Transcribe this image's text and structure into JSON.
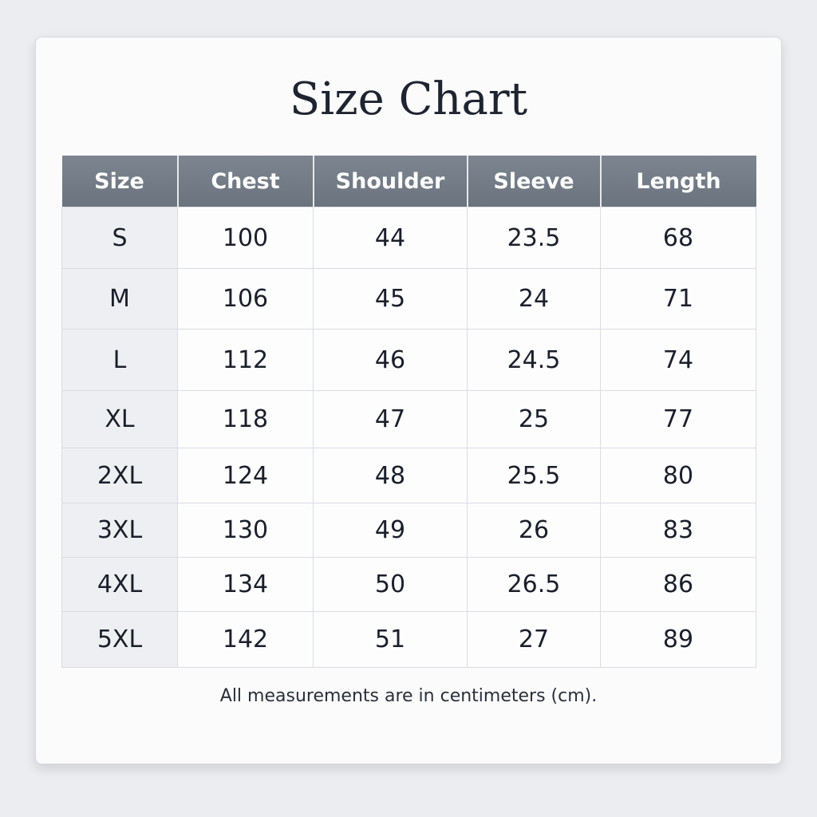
{
  "title": "Size Chart",
  "headers": [
    "Size",
    "Chest",
    "Shoulder",
    "Sleeve",
    "Length"
  ],
  "rows": [
    [
      "S",
      "100",
      "44",
      "23.5",
      "68"
    ],
    [
      "M",
      "106",
      "45",
      "24",
      "71"
    ],
    [
      "L",
      "112",
      "46",
      "24.5",
      "74"
    ],
    [
      "XL",
      "118",
      "47",
      "25",
      "77"
    ],
    [
      "2XL",
      "124",
      "48",
      "25.5",
      "80"
    ],
    [
      "3XL",
      "130",
      "49",
      "26",
      "83"
    ],
    [
      "4XL",
      "134",
      "50",
      "26.5",
      "86"
    ],
    [
      "5XL",
      "142",
      "51",
      "27",
      "89"
    ]
  ],
  "note": "All measurements are in centimeters (cm).",
  "colors": {
    "header_bg": "#737c87",
    "header_text": "#ffffff",
    "size_col_bg": "#eeeff2"
  }
}
